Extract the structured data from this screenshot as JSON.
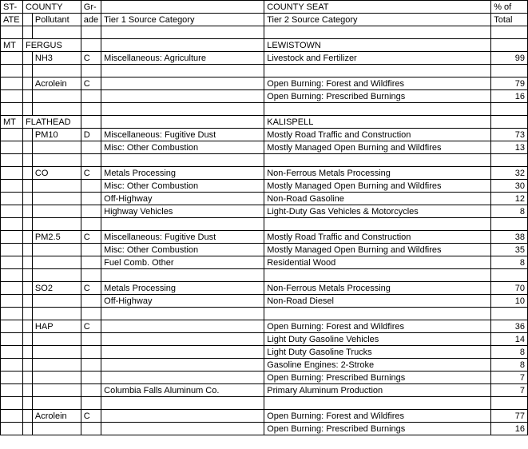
{
  "headers": {
    "row1": {
      "state": "ST-",
      "county": "COUNTY",
      "grade": "Gr-",
      "tier1": "",
      "countyseat": "COUNTY SEAT",
      "pct": "% of"
    },
    "row2": {
      "state": "ATE",
      "pollutant": "Pollutant",
      "grade": "ade",
      "tier1": "Tier 1 Source Category",
      "tier2": "Tier 2 Source Category",
      "pct": "Total"
    }
  },
  "rows": [
    {
      "state": "",
      "county": "",
      "pollutant": "",
      "grade": "",
      "tier1": "",
      "tier2": "",
      "pct": ""
    },
    {
      "state": "MT",
      "county": "FERGUS",
      "pollutant": "",
      "grade": "",
      "tier1": "",
      "tier2": "LEWISTOWN",
      "pct": ""
    },
    {
      "state": "",
      "county": "",
      "pollutant": "NH3",
      "grade": "C",
      "tier1": "Miscellaneous: Agriculture",
      "tier2": "Livestock and Fertilizer",
      "pct": "99"
    },
    {
      "state": "",
      "county": "",
      "pollutant": "",
      "grade": "",
      "tier1": "",
      "tier2": "",
      "pct": ""
    },
    {
      "state": "",
      "county": "",
      "pollutant": "Acrolein",
      "grade": "C",
      "tier1": "",
      "tier2": "Open Burning:  Forest and Wildfires",
      "pct": "79"
    },
    {
      "state": "",
      "county": "",
      "pollutant": "",
      "grade": "",
      "tier1": "",
      "tier2": "Open Burning:  Prescribed Burnings",
      "pct": "16"
    },
    {
      "state": "",
      "county": "",
      "pollutant": "",
      "grade": "",
      "tier1": "",
      "tier2": "",
      "pct": ""
    },
    {
      "state": "MT",
      "county": "FLATHEAD",
      "pollutant": "",
      "grade": "",
      "tier1": "",
      "tier2": "KALISPELL",
      "pct": ""
    },
    {
      "state": "",
      "county": "",
      "pollutant": "PM10",
      "grade": "D",
      "tier1": "Miscellaneous: Fugitive Dust",
      "tier2": "Mostly Road Traffic and Construction",
      "pct": "73"
    },
    {
      "state": "",
      "county": "",
      "pollutant": "",
      "grade": "",
      "tier1": "Misc: Other Combustion",
      "tier2": "Mostly Managed Open Burning and Wildfires",
      "pct": "13"
    },
    {
      "state": "",
      "county": "",
      "pollutant": "",
      "grade": "",
      "tier1": "",
      "tier2": "",
      "pct": ""
    },
    {
      "state": "",
      "county": "",
      "pollutant": "CO",
      "grade": "C",
      "tier1": "Metals Processing",
      "tier2": "Non-Ferrous Metals Processing",
      "pct": "32"
    },
    {
      "state": "",
      "county": "",
      "pollutant": "",
      "grade": "",
      "tier1": "Misc: Other Combustion",
      "tier2": "Mostly Managed Open Burning and Wildfires",
      "pct": "30"
    },
    {
      "state": "",
      "county": "",
      "pollutant": "",
      "grade": "",
      "tier1": "Off-Highway",
      "tier2": "Non-Road Gasoline",
      "pct": "12"
    },
    {
      "state": "",
      "county": "",
      "pollutant": "",
      "grade": "",
      "tier1": "Highway Vehicles",
      "tier2": "Light-Duty Gas Vehicles & Motorcycles",
      "pct": "8"
    },
    {
      "state": "",
      "county": "",
      "pollutant": "",
      "grade": "",
      "tier1": "",
      "tier2": "",
      "pct": ""
    },
    {
      "state": "",
      "county": "",
      "pollutant": "PM2.5",
      "grade": "C",
      "tier1": "Miscellaneous: Fugitive Dust",
      "tier2": "Mostly Road Traffic and Construction",
      "pct": "38"
    },
    {
      "state": "",
      "county": "",
      "pollutant": "",
      "grade": "",
      "tier1": "Misc: Other Combustion",
      "tier2": "Mostly Managed Open Burning and Wildfires",
      "pct": "35"
    },
    {
      "state": "",
      "county": "",
      "pollutant": "",
      "grade": "",
      "tier1": "Fuel Comb. Other",
      "tier2": "Residential Wood",
      "pct": "8"
    },
    {
      "state": "",
      "county": "",
      "pollutant": "",
      "grade": "",
      "tier1": "",
      "tier2": "",
      "pct": ""
    },
    {
      "state": "",
      "county": "",
      "pollutant": "SO2",
      "grade": "C",
      "tier1": "Metals Processing",
      "tier2": "Non-Ferrous Metals Processing",
      "pct": "70"
    },
    {
      "state": "",
      "county": "",
      "pollutant": "",
      "grade": "",
      "tier1": "Off-Highway",
      "tier2": "Non-Road Diesel",
      "pct": "10"
    },
    {
      "state": "",
      "county": "",
      "pollutant": "",
      "grade": "",
      "tier1": "",
      "tier2": "",
      "pct": ""
    },
    {
      "state": "",
      "county": "",
      "pollutant": "HAP",
      "grade": "C",
      "tier1": "",
      "tier2": "Open Burning: Forest and Wildfires",
      "pct": "36"
    },
    {
      "state": "",
      "county": "",
      "pollutant": "",
      "grade": "",
      "tier1": "",
      "tier2": "Light Duty Gasoline Vehicles",
      "pct": "14"
    },
    {
      "state": "",
      "county": "",
      "pollutant": "",
      "grade": "",
      "tier1": "",
      "tier2": "Light Duty Gasoline Trucks",
      "pct": "8"
    },
    {
      "state": "",
      "county": "",
      "pollutant": "",
      "grade": "",
      "tier1": "",
      "tier2": "Gasoline Engines: 2-Stroke",
      "pct": "8"
    },
    {
      "state": "",
      "county": "",
      "pollutant": "",
      "grade": "",
      "tier1": "",
      "tier2": "Open Burning: Prescribed Burnings",
      "pct": "7"
    },
    {
      "state": "",
      "county": "",
      "pollutant": "",
      "grade": "",
      "tier1": "Columbia Falls Aluminum Co.",
      "tier2": "Primary Aluminum Production",
      "pct": "7"
    },
    {
      "state": "",
      "county": "",
      "pollutant": "",
      "grade": "",
      "tier1": "",
      "tier2": "",
      "pct": ""
    },
    {
      "state": "",
      "county": "",
      "pollutant": "Acrolein",
      "grade": "C",
      "tier1": "",
      "tier2": "Open Burning:  Forest and Wildfires",
      "pct": "77"
    },
    {
      "state": "",
      "county": "",
      "pollutant": "",
      "grade": "",
      "tier1": "",
      "tier2": "Open Burning:  Prescribed Burnings",
      "pct": "16"
    }
  ]
}
